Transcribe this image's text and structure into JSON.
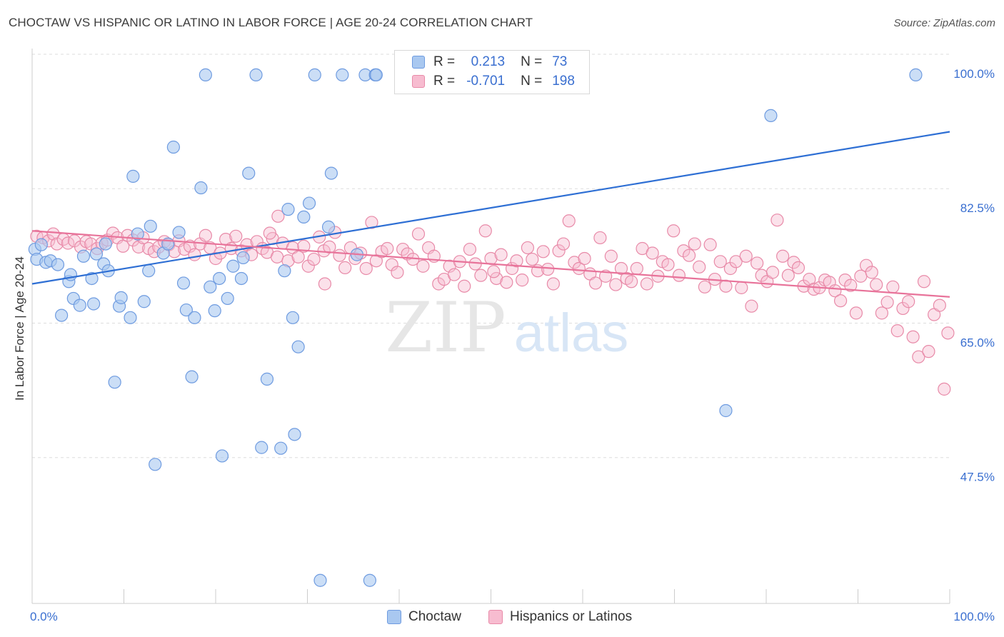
{
  "title": "CHOCTAW VS HISPANIC OR LATINO IN LABOR FORCE | AGE 20-24 CORRELATION CHART",
  "source": "Source: ZipAtlas.com",
  "watermark": {
    "zip": "ZIP",
    "atlas": "atlas"
  },
  "legend": {
    "r_label": "R =",
    "n_label": "N =",
    "series": [
      {
        "r": "0.213",
        "n": "73",
        "fill": "#a9c8f0",
        "stroke": "#6e9be0"
      },
      {
        "r": "-0.701",
        "n": "198",
        "fill": "#f7bcd0",
        "stroke": "#e88aa8"
      }
    ]
  },
  "bottom_legend": [
    "Choctaw",
    "Hispanics or Latinos"
  ],
  "colors": {
    "blue_line": "#2e6fd4",
    "pink_line": "#e8739a",
    "axis_text": "#3a6fd0",
    "grid": "#dddddd"
  },
  "chart_data": {
    "type": "scatter",
    "title": "CHOCTAW VS HISPANIC OR LATINO IN LABOR FORCE | AGE 20-24 CORRELATION CHART",
    "xlabel": "",
    "ylabel": "In Labor Force | Age 20-24",
    "xlim": [
      0,
      100
    ],
    "ylim": [
      30,
      100
    ],
    "x_tick_labels": [
      "0.0%",
      "100.0%"
    ],
    "y_ticks": [
      47.5,
      65.0,
      82.5,
      100.0
    ],
    "y_tick_labels": [
      "47.5%",
      "65.0%",
      "82.5%",
      "100.0%"
    ],
    "grid": true,
    "legend_position": "top-center",
    "series": [
      {
        "name": "Choctaw",
        "color": "#a9c8f0",
        "trend": {
          "x": [
            0,
            100
          ],
          "y": [
            71.6,
            91.4
          ]
        },
        "points": [
          [
            0.3,
            76.1
          ],
          [
            0.5,
            74.8
          ],
          [
            1,
            76.7
          ],
          [
            1.5,
            74.4
          ],
          [
            2,
            74.6
          ],
          [
            2.8,
            74.1
          ],
          [
            3.2,
            67.5
          ],
          [
            4,
            71.9
          ],
          [
            4.2,
            72.8
          ],
          [
            4.5,
            69.7
          ],
          [
            5.2,
            68.8
          ],
          [
            5.6,
            75.2
          ],
          [
            6.5,
            72.3
          ],
          [
            6.7,
            69
          ],
          [
            7,
            75.5
          ],
          [
            7.8,
            74.2
          ],
          [
            8,
            76.8
          ],
          [
            8.3,
            73.3
          ],
          [
            9,
            58.8
          ],
          [
            9.5,
            68.7
          ],
          [
            9.7,
            69.8
          ],
          [
            10.7,
            67.2
          ],
          [
            11,
            85.6
          ],
          [
            11.5,
            78.1
          ],
          [
            12.2,
            69.3
          ],
          [
            12.7,
            73.3
          ],
          [
            12.9,
            79.1
          ],
          [
            13.4,
            48.1
          ],
          [
            14.3,
            75.6
          ],
          [
            14.8,
            76.8
          ],
          [
            15.4,
            89.4
          ],
          [
            16,
            78.3
          ],
          [
            16.5,
            71.7
          ],
          [
            16.8,
            68.2
          ],
          [
            17.4,
            59.5
          ],
          [
            17.7,
            67.2
          ],
          [
            18.4,
            84.1
          ],
          [
            18.9,
            98.8
          ],
          [
            19.4,
            71.2
          ],
          [
            19.9,
            68.1
          ],
          [
            20.4,
            72.3
          ],
          [
            20.7,
            49.2
          ],
          [
            21.3,
            69.7
          ],
          [
            21.9,
            73.9
          ],
          [
            22.8,
            72.3
          ],
          [
            23,
            75
          ],
          [
            23.6,
            86
          ],
          [
            24.4,
            98.8
          ],
          [
            25,
            50.3
          ],
          [
            25.6,
            59.2
          ],
          [
            27.1,
            50.2
          ],
          [
            27.5,
            73.3
          ],
          [
            27.9,
            81.3
          ],
          [
            28.4,
            67.2
          ],
          [
            28.6,
            52
          ],
          [
            29,
            63.4
          ],
          [
            29.6,
            80.3
          ],
          [
            30.2,
            82.1
          ],
          [
            30.8,
            98.8
          ],
          [
            31.4,
            33
          ],
          [
            32.3,
            79
          ],
          [
            32.6,
            86
          ],
          [
            33.8,
            98.8
          ],
          [
            35.4,
            75.4
          ],
          [
            36.3,
            98.8
          ],
          [
            37.4,
            98.8
          ],
          [
            36.8,
            33
          ],
          [
            37.5,
            98.8
          ],
          [
            75.6,
            55.1
          ],
          [
            80.5,
            93.5
          ],
          [
            96.3,
            98.8
          ]
        ]
      },
      {
        "name": "Hispanics or Latinos",
        "color": "#f7bcd0",
        "trend": {
          "x": [
            0,
            100
          ],
          "y": [
            78.5,
            69.9
          ]
        },
        "points": [
          [
            0.5,
            77.8
          ],
          [
            1.2,
            77.6
          ],
          [
            1.8,
            77.2
          ],
          [
            2.3,
            78.1
          ],
          [
            2.7,
            76.8
          ],
          [
            3.4,
            77.4
          ],
          [
            3.9,
            76.9
          ],
          [
            4.6,
            77.2
          ],
          [
            5.3,
            76.4
          ],
          [
            5.9,
            77.1
          ],
          [
            6.4,
            76.8
          ],
          [
            7.1,
            76.2
          ],
          [
            7.6,
            76.9
          ],
          [
            8.2,
            77.3
          ],
          [
            8.8,
            78.2
          ],
          [
            9.3,
            77.6
          ],
          [
            9.9,
            76.5
          ],
          [
            10.4,
            77.9
          ],
          [
            11,
            77.3
          ],
          [
            11.6,
            76.4
          ],
          [
            12.1,
            77.6
          ],
          [
            12.7,
            76.2
          ],
          [
            13.3,
            75.8
          ],
          [
            13.8,
            76.4
          ],
          [
            14.4,
            77.1
          ],
          [
            14.9,
            76.7
          ],
          [
            15.5,
            75.8
          ],
          [
            16,
            77.2
          ],
          [
            16.6,
            76.1
          ],
          [
            17.2,
            76.5
          ],
          [
            17.7,
            75.4
          ],
          [
            18.3,
            76.8
          ],
          [
            18.9,
            77.9
          ],
          [
            19.4,
            76.3
          ],
          [
            20,
            74.9
          ],
          [
            20.5,
            75.6
          ],
          [
            21.1,
            77.4
          ],
          [
            21.7,
            76.2
          ],
          [
            22.2,
            77.8
          ],
          [
            22.8,
            75.9
          ],
          [
            23.4,
            76.7
          ],
          [
            23.9,
            75.4
          ],
          [
            24.5,
            77.1
          ],
          [
            25.1,
            76.2
          ],
          [
            25.6,
            75.7
          ],
          [
            26.2,
            77.5
          ],
          [
            26.7,
            75.1
          ],
          [
            27.3,
            76.9
          ],
          [
            27.9,
            74.6
          ],
          [
            28.4,
            76.3
          ],
          [
            29,
            75.1
          ],
          [
            29.6,
            76.5
          ],
          [
            30.1,
            73.9
          ],
          [
            30.7,
            74.8
          ],
          [
            31.3,
            77.7
          ],
          [
            31.8,
            75.9
          ],
          [
            32.4,
            76.4
          ],
          [
            33,
            78.3
          ],
          [
            33.5,
            75.3
          ],
          [
            34.1,
            73.7
          ],
          [
            34.7,
            76.3
          ],
          [
            35.2,
            74.9
          ],
          [
            35.8,
            75.6
          ],
          [
            36.4,
            73.6
          ],
          [
            37,
            79.6
          ],
          [
            37.5,
            74.6
          ],
          [
            38.1,
            75.8
          ],
          [
            38.7,
            76.2
          ],
          [
            39.2,
            74.1
          ],
          [
            39.8,
            73.1
          ],
          [
            40.4,
            76.1
          ],
          [
            40.9,
            75.5
          ],
          [
            41.5,
            74.8
          ],
          [
            42.1,
            78.1
          ],
          [
            42.6,
            73.9
          ],
          [
            43.2,
            76.3
          ],
          [
            43.8,
            75.2
          ],
          [
            44.3,
            71.6
          ],
          [
            44.9,
            72.2
          ],
          [
            45.5,
            73.9
          ],
          [
            46,
            72.8
          ],
          [
            46.6,
            74.5
          ],
          [
            47.1,
            71.3
          ],
          [
            47.7,
            76.1
          ],
          [
            48.3,
            74.2
          ],
          [
            48.9,
            72.7
          ],
          [
            49.4,
            78.5
          ],
          [
            50,
            74.9
          ],
          [
            50.6,
            72.3
          ],
          [
            51.1,
            75.4
          ],
          [
            51.7,
            71.8
          ],
          [
            52.3,
            73.6
          ],
          [
            52.8,
            74.6
          ],
          [
            53.4,
            72.1
          ],
          [
            54,
            76.3
          ],
          [
            54.5,
            74.8
          ],
          [
            55.1,
            73.3
          ],
          [
            55.7,
            75.8
          ],
          [
            56.2,
            73.5
          ],
          [
            56.8,
            71.6
          ],
          [
            57.4,
            75.9
          ],
          [
            57.9,
            76.8
          ],
          [
            58.5,
            79.8
          ],
          [
            59.1,
            74.4
          ],
          [
            59.6,
            73.6
          ],
          [
            60.2,
            74.9
          ],
          [
            60.8,
            72.9
          ],
          [
            61.4,
            71.7
          ],
          [
            61.9,
            77.6
          ],
          [
            62.5,
            72.6
          ],
          [
            63.1,
            75.2
          ],
          [
            63.6,
            71.5
          ],
          [
            64.2,
            73.6
          ],
          [
            64.8,
            72.3
          ],
          [
            65.3,
            71.9
          ],
          [
            65.9,
            73.6
          ],
          [
            66.5,
            76.2
          ],
          [
            67,
            71.6
          ],
          [
            67.6,
            75.6
          ],
          [
            68.2,
            72.6
          ],
          [
            68.7,
            74.5
          ],
          [
            69.3,
            74.1
          ],
          [
            69.9,
            78.5
          ],
          [
            70.5,
            72.7
          ],
          [
            71,
            75.9
          ],
          [
            71.6,
            75.3
          ],
          [
            72.2,
            76.8
          ],
          [
            72.7,
            73.8
          ],
          [
            73.3,
            71.2
          ],
          [
            73.9,
            76.7
          ],
          [
            74.4,
            72.2
          ],
          [
            75,
            74.5
          ],
          [
            75.6,
            71.3
          ],
          [
            76.1,
            73.6
          ],
          [
            76.7,
            74.5
          ],
          [
            77.3,
            71.1
          ],
          [
            77.8,
            75.2
          ],
          [
            78.4,
            68.7
          ],
          [
            79,
            74.3
          ],
          [
            79.5,
            72.7
          ],
          [
            80.1,
            71.9
          ],
          [
            80.7,
            73.1
          ],
          [
            81.2,
            79.9
          ],
          [
            81.8,
            75.2
          ],
          [
            82.4,
            72.7
          ],
          [
            83,
            74.4
          ],
          [
            83.5,
            73.7
          ],
          [
            84.1,
            71.3
          ],
          [
            84.7,
            72.2
          ],
          [
            85.2,
            70.9
          ],
          [
            85.8,
            71.1
          ],
          [
            86.4,
            72.1
          ],
          [
            86.9,
            71.8
          ],
          [
            87.5,
            70.7
          ],
          [
            88.1,
            69.4
          ],
          [
            88.6,
            72.1
          ],
          [
            89.2,
            71.4
          ],
          [
            89.8,
            67.8
          ],
          [
            90.3,
            72.6
          ],
          [
            90.9,
            74
          ],
          [
            91.5,
            73.1
          ],
          [
            92,
            71.5
          ],
          [
            92.6,
            67.8
          ],
          [
            93.2,
            69.2
          ],
          [
            93.8,
            71.2
          ],
          [
            94.3,
            65.5
          ],
          [
            94.9,
            68.4
          ],
          [
            95.5,
            69.3
          ],
          [
            96,
            64.7
          ],
          [
            96.6,
            62.1
          ],
          [
            97.2,
            71.9
          ],
          [
            97.7,
            62.8
          ],
          [
            98.3,
            67.6
          ],
          [
            98.9,
            68.8
          ],
          [
            99.4,
            57.9
          ],
          [
            99.8,
            65.2
          ],
          [
            26.8,
            80.4
          ],
          [
            25.9,
            78.2
          ],
          [
            31.9,
            71.6
          ],
          [
            50.3,
            73.2
          ]
        ]
      }
    ]
  }
}
